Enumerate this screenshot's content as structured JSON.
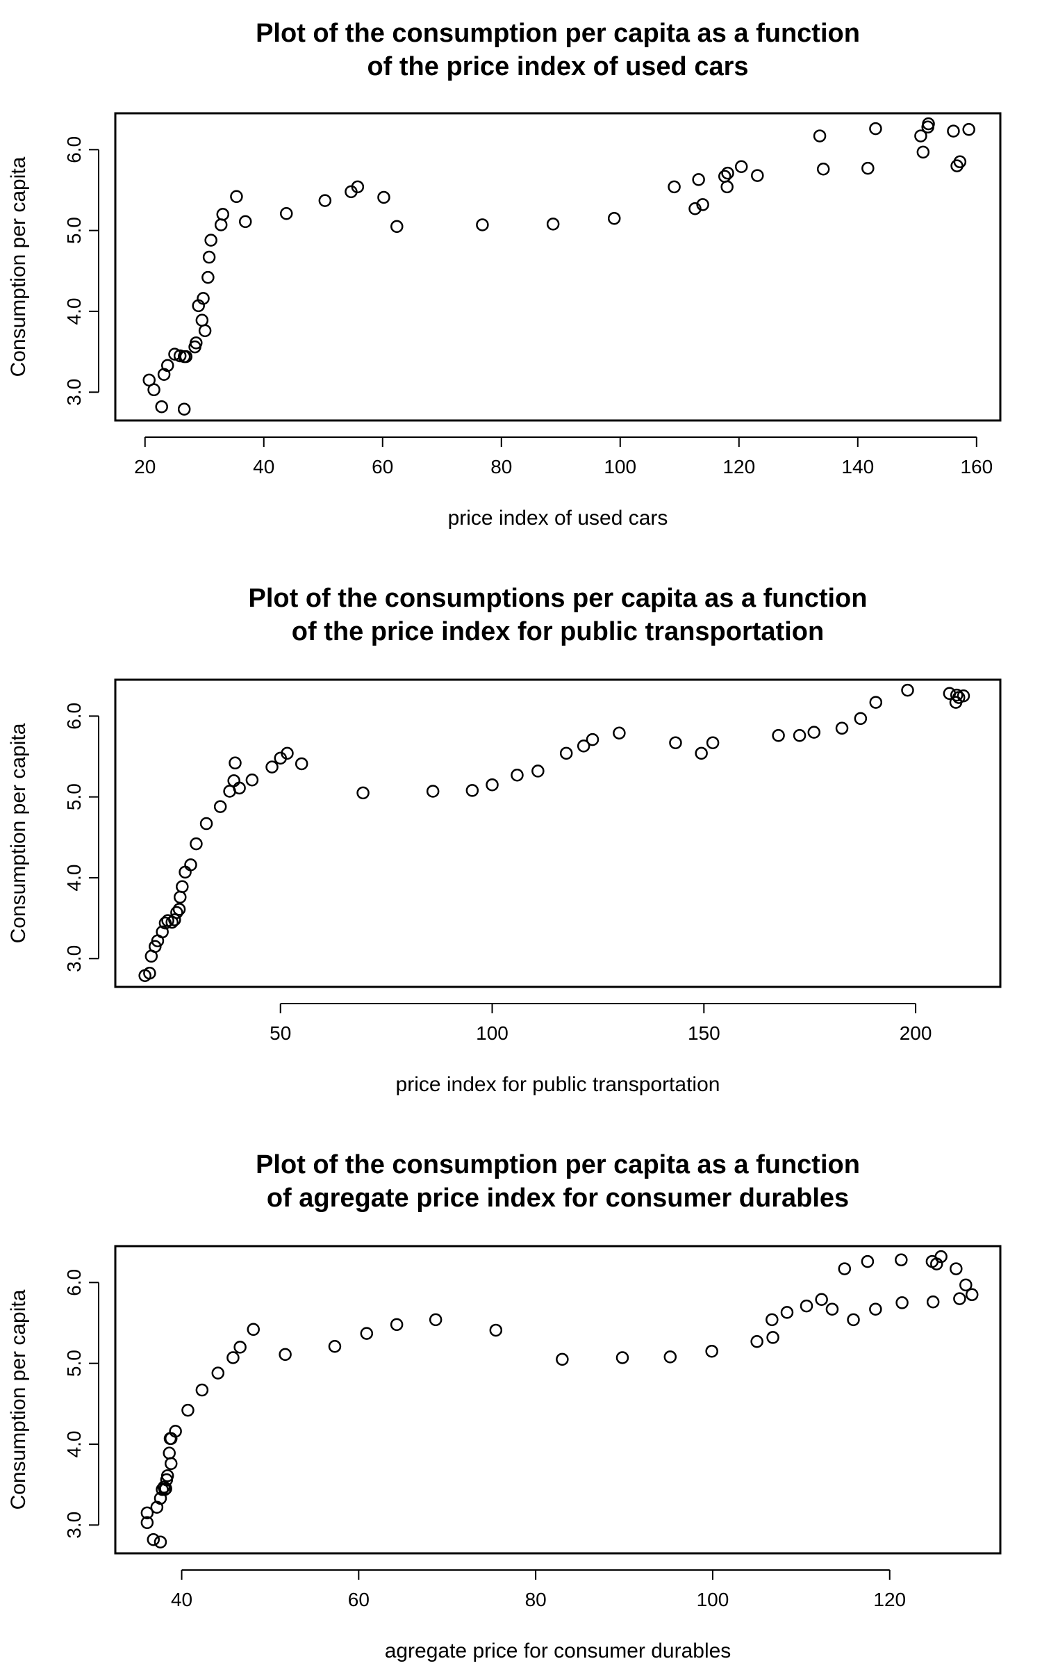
{
  "chart_data": [
    {
      "type": "scatter",
      "title": [
        "Plot of the consumption per capita as a function",
        "of the price index of used cars"
      ],
      "xlabel": "price index of used cars",
      "ylabel": "Consumption per capita",
      "xlim": [
        15,
        164
      ],
      "ylim": [
        2.65,
        6.45
      ],
      "xticks": [
        20,
        40,
        60,
        80,
        100,
        120,
        140,
        160
      ],
      "yticks": [
        3.0,
        4.0,
        5.0,
        6.0
      ],
      "ytick_labels": [
        "3.0",
        "4.0",
        "5.0",
        "6.0"
      ],
      "grid": false,
      "x": [
        20.7,
        21.5,
        22.8,
        23.2,
        23.8,
        25.0,
        25.9,
        26.6,
        26.6,
        26.9,
        28.4,
        28.6,
        29.0,
        29.6,
        29.8,
        30.1,
        30.6,
        30.8,
        31.1,
        32.8,
        33.1,
        35.4,
        36.9,
        43.8,
        50.3,
        54.7,
        55.8,
        60.2,
        62.4,
        76.8,
        88.7,
        99.0,
        109.1,
        112.6,
        113.2,
        113.9,
        117.6,
        118.0,
        118.1,
        120.4,
        123.1,
        133.6,
        134.2,
        141.7,
        143.0,
        150.6,
        151.0,
        151.8,
        151.9,
        156.1,
        156.7,
        157.2,
        158.7
      ],
      "y": [
        3.15,
        3.03,
        2.82,
        3.22,
        3.33,
        3.47,
        3.45,
        3.44,
        2.79,
        3.44,
        3.56,
        3.61,
        4.07,
        3.89,
        4.16,
        3.76,
        4.42,
        4.67,
        4.88,
        5.07,
        5.2,
        5.42,
        5.11,
        5.21,
        5.37,
        5.48,
        5.54,
        5.41,
        5.05,
        5.07,
        5.08,
        5.15,
        5.54,
        5.27,
        5.63,
        5.32,
        5.67,
        5.54,
        5.71,
        5.79,
        5.68,
        6.17,
        5.76,
        5.77,
        6.26,
        6.17,
        5.97,
        6.28,
        6.32,
        6.23,
        5.8,
        5.85,
        6.25
      ]
    },
    {
      "type": "scatter",
      "title": [
        "Plot of the consumptions per capita as a function",
        "of the price index for public transportation"
      ],
      "xlabel": "price index for public transportation",
      "ylabel": "Consumption per capita",
      "xlim": [
        11,
        220
      ],
      "ylim": [
        2.65,
        6.45
      ],
      "xticks": [
        50,
        100,
        150,
        200
      ],
      "yticks": [
        3.0,
        4.0,
        5.0,
        6.0
      ],
      "ytick_labels": [
        "3.0",
        "4.0",
        "5.0",
        "6.0"
      ],
      "grid": false,
      "x": [
        18.0,
        19.1,
        19.5,
        20.4,
        21.0,
        22.1,
        22.8,
        23.4,
        24.4,
        25.0,
        25.5,
        26.1,
        26.3,
        26.8,
        27.5,
        28.8,
        30.1,
        32.5,
        35.8,
        38.0,
        39.0,
        39.3,
        40.3,
        43.3,
        48.0,
        50.0,
        51.6,
        55.0,
        69.5,
        86.0,
        95.3,
        100.0,
        105.9,
        110.8,
        117.5,
        121.6,
        123.7,
        130.0,
        143.3,
        149.4,
        152.1,
        167.6,
        172.6,
        176.0,
        182.6,
        187.0,
        190.6,
        198.1,
        208.0,
        209.5,
        209.7,
        210.2,
        211.3
      ],
      "y": [
        2.79,
        2.82,
        3.03,
        3.15,
        3.22,
        3.33,
        3.44,
        3.47,
        3.45,
        3.48,
        3.57,
        3.61,
        3.76,
        3.89,
        4.07,
        4.16,
        4.42,
        4.67,
        4.88,
        5.07,
        5.2,
        5.42,
        5.11,
        5.21,
        5.37,
        5.48,
        5.54,
        5.41,
        5.05,
        5.07,
        5.08,
        5.15,
        5.27,
        5.32,
        5.54,
        5.63,
        5.71,
        5.79,
        5.67,
        5.54,
        5.67,
        5.76,
        5.76,
        5.8,
        5.85,
        5.97,
        6.17,
        6.32,
        6.28,
        6.17,
        6.26,
        6.23,
        6.25
      ]
    },
    {
      "type": "scatter",
      "title": [
        "Plot of the consumption per capita as a function",
        "of agregate price index for consumer durables"
      ],
      "xlabel": "agregate price for consumer durables",
      "ylabel": "Consumption per capita",
      "xlim": [
        32.5,
        132.5
      ],
      "ylim": [
        2.65,
        6.45
      ],
      "xticks": [
        40,
        60,
        80,
        100,
        120
      ],
      "yticks": [
        3.0,
        4.0,
        5.0,
        6.0
      ],
      "ytick_labels": [
        "3.0",
        "4.0",
        "5.0",
        "6.0"
      ],
      "grid": false,
      "x": [
        36.1,
        36.1,
        36.8,
        37.2,
        37.6,
        37.6,
        37.8,
        38.0,
        38.1,
        38.2,
        38.3,
        38.4,
        38.6,
        38.7,
        38.8,
        38.8,
        39.3,
        40.7,
        42.3,
        44.1,
        45.8,
        46.6,
        48.1,
        51.7,
        57.3,
        60.9,
        64.3,
        68.7,
        75.5,
        83.0,
        89.8,
        95.2,
        99.9,
        105.0,
        106.7,
        106.8,
        108.4,
        110.6,
        112.3,
        113.5,
        114.9,
        115.9,
        117.5,
        118.4,
        121.3,
        121.4,
        124.8,
        124.9,
        125.3,
        125.8,
        127.5,
        127.9,
        128.6,
        129.3
      ],
      "y": [
        3.15,
        3.03,
        2.82,
        3.22,
        2.79,
        3.33,
        3.44,
        3.47,
        3.44,
        3.45,
        3.56,
        3.61,
        3.89,
        4.07,
        3.76,
        4.07,
        4.16,
        4.42,
        4.67,
        4.88,
        5.07,
        5.2,
        5.42,
        5.11,
        5.21,
        5.37,
        5.48,
        5.54,
        5.41,
        5.05,
        5.07,
        5.08,
        5.15,
        5.27,
        5.54,
        5.32,
        5.63,
        5.71,
        5.79,
        5.67,
        6.17,
        5.54,
        6.26,
        5.67,
        6.28,
        5.75,
        6.26,
        5.76,
        6.23,
        6.32,
        6.17,
        5.8,
        5.97,
        5.85
      ]
    }
  ]
}
